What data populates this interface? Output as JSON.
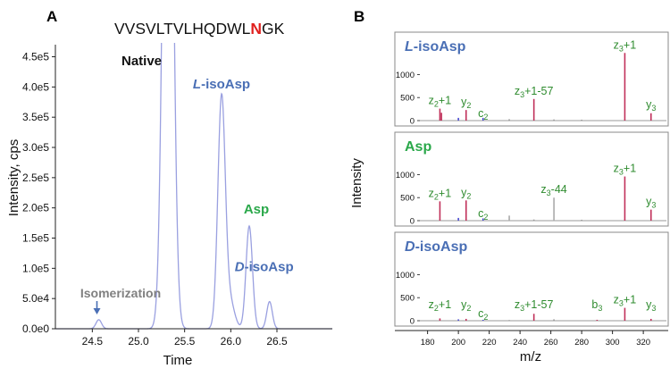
{
  "chart_data": [
    {
      "type": "line",
      "panel_label": "A",
      "title_prefix": "VVSVLTVLHQDWL",
      "title_highlight": "N",
      "title_suffix": "GK",
      "highlight_color": "#e0201e",
      "xlabel": "Time",
      "ylabel": "Intensity, cps",
      "xlim": [
        24.1,
        27.1
      ],
      "ylim": [
        0,
        470000
      ],
      "xticks": [
        24.5,
        25.0,
        25.5,
        26.0,
        26.5
      ],
      "xtick_labels": [
        "24.5",
        "25.0",
        "25.5",
        "26.0",
        "26.5"
      ],
      "yticks": [
        0,
        50000,
        100000,
        150000,
        200000,
        250000,
        300000,
        350000,
        400000,
        450000
      ],
      "ytick_labels": [
        "0.0e0",
        "5.0e4",
        "1.0e5",
        "1.5e5",
        "2.0e5",
        "2.5e5",
        "3.0e5",
        "3.5e5",
        "4.0e5",
        "4.5e5"
      ],
      "line_color": "#9aa0e0",
      "peaks": [
        {
          "center": 24.57,
          "height": 15000,
          "width": 0.03
        },
        {
          "center": 25.32,
          "height": 1300000,
          "width": 0.05
        },
        {
          "center": 25.9,
          "height": 380000,
          "width": 0.04
        },
        {
          "center": 25.99,
          "height": 45000,
          "width": 0.05
        },
        {
          "center": 26.2,
          "height": 170000,
          "width": 0.035
        },
        {
          "center": 26.42,
          "height": 45000,
          "width": 0.03
        }
      ],
      "annotations": [
        {
          "text": "Native",
          "x": 25.05,
          "y": 435000,
          "color": "#111111"
        },
        {
          "text_italic": "L",
          "text": "-isoAsp",
          "x": 25.9,
          "y": 380000,
          "color": "#4a6fb5"
        },
        {
          "text": "Asp",
          "x": 26.2,
          "y": 170000,
          "color": "#2aa84a"
        },
        {
          "text_italic": "D",
          "text": "-isoAsp",
          "x": 26.42,
          "y": 45000,
          "color": "#4a6fb5"
        },
        {
          "text": "Isomerization",
          "x": 24.55,
          "y": 15000,
          "color": "#808080",
          "arrow_color": "#4a6fb5"
        }
      ]
    },
    {
      "type": "bar",
      "panel_label": "B",
      "xlabel": "m/z",
      "ylabel": "Intensity",
      "xlim": [
        175,
        335
      ],
      "ylim": [
        0,
        1650
      ],
      "xticks": [
        180,
        200,
        220,
        240,
        260,
        280,
        300,
        320
      ],
      "xtick_labels": [
        "180",
        "200",
        "220",
        "240",
        "260",
        "280",
        "300",
        "320"
      ],
      "yticks": [
        0,
        500,
        1000
      ],
      "ytick_labels": [
        "0",
        "500",
        "1000"
      ],
      "panels": [
        {
          "title_italic": "L",
          "title": "-isoAsp",
          "title_color": "#4a6fb5",
          "peaks": [
            {
              "mz": 188,
              "intensity": 260,
              "color": "#c0305a"
            },
            {
              "mz": 189,
              "intensity": 170,
              "color": "#c0305a"
            },
            {
              "mz": 200,
              "intensity": 60,
              "color": "#4a4ad0"
            },
            {
              "mz": 205,
              "intensity": 230,
              "color": "#c0305a"
            },
            {
              "mz": 216,
              "intensity": 60,
              "color": "#4a4ad0"
            },
            {
              "mz": 249,
              "intensity": 470,
              "color": "#c0305a"
            },
            {
              "mz": 308,
              "intensity": 1470,
              "color": "#c0305a"
            },
            {
              "mz": 325,
              "intensity": 160,
              "color": "#c0305a"
            },
            {
              "mz": 233,
              "intensity": 30,
              "color": "#999999"
            },
            {
              "mz": 262,
              "intensity": 25,
              "color": "#999999"
            },
            {
              "mz": 280,
              "intensity": 20,
              "color": "#999999"
            }
          ],
          "labels": [
            {
              "base": "z",
              "sub": "2",
              "suffix": "+1",
              "mz": 188,
              "intensity": 260
            },
            {
              "base": "y",
              "sub": "2",
              "suffix": "",
              "mz": 205,
              "intensity": 230
            },
            {
              "base": "c",
              "sub": "2",
              "suffix": "",
              "mz": 216,
              "intensity": 60
            },
            {
              "base": "z",
              "sub": "3",
              "suffix": "+1-57",
              "mz": 249,
              "intensity": 470
            },
            {
              "base": "z",
              "sub": "3",
              "suffix": "+1",
              "mz": 308,
              "intensity": 1470
            },
            {
              "base": "y",
              "sub": "3",
              "suffix": "",
              "mz": 325,
              "intensity": 160
            }
          ]
        },
        {
          "title_italic": "",
          "title": "Asp",
          "title_color": "#2aa84a",
          "peaks": [
            {
              "mz": 188,
              "intensity": 420,
              "color": "#c0305a"
            },
            {
              "mz": 200,
              "intensity": 60,
              "color": "#4a4ad0"
            },
            {
              "mz": 205,
              "intensity": 440,
              "color": "#c0305a"
            },
            {
              "mz": 216,
              "intensity": 50,
              "color": "#4a4ad0"
            },
            {
              "mz": 233,
              "intensity": 110,
              "color": "#aaaaaa"
            },
            {
              "mz": 262,
              "intensity": 500,
              "color": "#aaaaaa"
            },
            {
              "mz": 308,
              "intensity": 960,
              "color": "#c0305a"
            },
            {
              "mz": 325,
              "intensity": 240,
              "color": "#c0305a"
            },
            {
              "mz": 249,
              "intensity": 25,
              "color": "#999999"
            },
            {
              "mz": 280,
              "intensity": 20,
              "color": "#999999"
            }
          ],
          "labels": [
            {
              "base": "z",
              "sub": "2",
              "suffix": "+1",
              "mz": 188,
              "intensity": 420
            },
            {
              "base": "y",
              "sub": "2",
              "suffix": "",
              "mz": 205,
              "intensity": 440
            },
            {
              "base": "c",
              "sub": "2",
              "suffix": "",
              "mz": 216,
              "intensity": 50
            },
            {
              "base": "z",
              "sub": "3",
              "suffix": "-44",
              "mz": 262,
              "intensity": 500
            },
            {
              "base": "z",
              "sub": "3",
              "suffix": "+1",
              "mz": 308,
              "intensity": 960
            },
            {
              "base": "y",
              "sub": "3",
              "suffix": "",
              "mz": 325,
              "intensity": 240
            }
          ]
        },
        {
          "title_italic": "D",
          "title": "-isoAsp",
          "title_color": "#4a6fb5",
          "peaks": [
            {
              "mz": 188,
              "intensity": 50,
              "color": "#c0305a"
            },
            {
              "mz": 200,
              "intensity": 30,
              "color": "#4a4ad0"
            },
            {
              "mz": 205,
              "intensity": 40,
              "color": "#c0305a"
            },
            {
              "mz": 216,
              "intensity": 20,
              "color": "#4a4ad0"
            },
            {
              "mz": 249,
              "intensity": 150,
              "color": "#c0305a"
            },
            {
              "mz": 290,
              "intensity": 20,
              "color": "#c0305a"
            },
            {
              "mz": 308,
              "intensity": 280,
              "color": "#c0305a"
            },
            {
              "mz": 325,
              "intensity": 40,
              "color": "#c0305a"
            },
            {
              "mz": 262,
              "intensity": 30,
              "color": "#999999"
            },
            {
              "mz": 233,
              "intensity": 15,
              "color": "#999999"
            }
          ],
          "labels": [
            {
              "base": "z",
              "sub": "2",
              "suffix": "+1",
              "mz": 188,
              "intensity": 50
            },
            {
              "base": "y",
              "sub": "2",
              "suffix": "",
              "mz": 205,
              "intensity": 40
            },
            {
              "base": "c",
              "sub": "2",
              "suffix": "",
              "mz": 216,
              "intensity": 20
            },
            {
              "base": "z",
              "sub": "3",
              "suffix": "+1-57",
              "mz": 249,
              "intensity": 150
            },
            {
              "base": "b",
              "sub": "3",
              "suffix": "",
              "mz": 290,
              "intensity": 20
            },
            {
              "base": "z",
              "sub": "3",
              "suffix": "+1",
              "mz": 308,
              "intensity": 280
            },
            {
              "base": "y",
              "sub": "3",
              "suffix": "",
              "mz": 325,
              "intensity": 40
            }
          ]
        }
      ]
    }
  ]
}
